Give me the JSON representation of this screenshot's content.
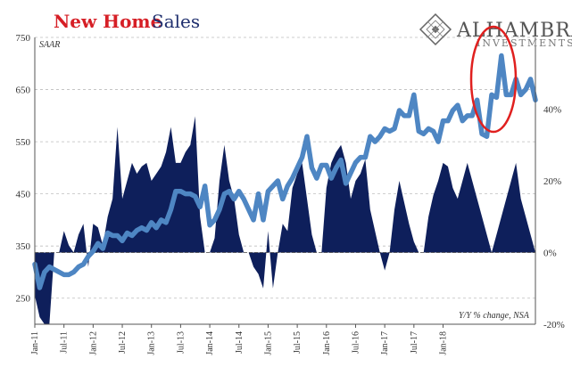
{
  "title": {
    "part1": "New Home",
    "part2": "Sales"
  },
  "logo": {
    "name": "ALHAMBRA",
    "subtitle": "INVESTMENTS"
  },
  "chart_data": {
    "type": "line",
    "left_axis": {
      "label": "SAAR",
      "ylim": [
        200,
        750
      ],
      "ticks": [
        "250",
        "350",
        "450",
        "550",
        "650",
        "750"
      ]
    },
    "right_axis": {
      "label": "Y/Y % change, NSA",
      "ylim": [
        -20,
        60
      ],
      "ticks": [
        "-20%",
        "0%",
        "20%",
        "40%"
      ]
    },
    "x_ticks": [
      "Jan-11",
      "Jul-11",
      "Jan-12",
      "Jul-12",
      "Jan-13",
      "Jul-13",
      "Jan-14",
      "Jul-14",
      "Jan-15",
      "Jul-15",
      "Jan-16",
      "Jul-16",
      "Jan-17",
      "Jul-17",
      "Jan-18"
    ],
    "x_start": "2011-01",
    "grid": "horizontal dashed",
    "highlight": "red ellipse around late 2017 peak",
    "colors": {
      "line": "#4e86c3",
      "area": "#0e1f5b",
      "highlight": "#e0201f",
      "title_red": "#d61f26",
      "title_blue": "#1f2f6e"
    },
    "series": [
      {
        "kind": "line",
        "axis": "left",
        "values": [
          315,
          270,
          300,
          310,
          305,
          300,
          295,
          295,
          300,
          310,
          315,
          330,
          340,
          355,
          345,
          375,
          370,
          370,
          360,
          375,
          370,
          380,
          385,
          380,
          395,
          385,
          400,
          395,
          420,
          455,
          455,
          450,
          450,
          445,
          425,
          465,
          390,
          400,
          420,
          450,
          455,
          440,
          455,
          440,
          420,
          400,
          450,
          400,
          455,
          465,
          475,
          440,
          465,
          480,
          500,
          520,
          560,
          500,
          480,
          505,
          505,
          480,
          500,
          515,
          470,
          490,
          510,
          520,
          520,
          560,
          550,
          560,
          575,
          570,
          575,
          610,
          600,
          600,
          640,
          570,
          565,
          575,
          570,
          550,
          590,
          590,
          610,
          620,
          590,
          600,
          600,
          630,
          565,
          560,
          640,
          635,
          715,
          640,
          640,
          670,
          640,
          650,
          670,
          630
        ]
      },
      {
        "kind": "area",
        "axis": "right",
        "values": [
          -12,
          -18,
          -20,
          -20,
          0,
          0,
          6,
          2,
          0,
          5,
          8,
          -4,
          8,
          7,
          2,
          10,
          15,
          35,
          15,
          20,
          25,
          22,
          24,
          25,
          20,
          22,
          24,
          28,
          35,
          25,
          25,
          28,
          30,
          38,
          10,
          0,
          0,
          4,
          20,
          30,
          20,
          15,
          5,
          0,
          0,
          -4,
          -6,
          -10,
          6,
          -10,
          0,
          8,
          6,
          18,
          22,
          25,
          15,
          5,
          0,
          0,
          18,
          25,
          28,
          30,
          25,
          15,
          20,
          22,
          26,
          12,
          6,
          0,
          -5,
          0,
          12,
          20,
          14,
          8,
          3,
          0,
          0,
          10,
          16,
          20,
          25,
          24,
          18,
          15,
          20,
          25,
          20,
          15,
          10,
          5,
          0,
          5,
          10,
          15,
          20,
          25,
          15,
          10,
          5,
          0
        ]
      }
    ]
  }
}
